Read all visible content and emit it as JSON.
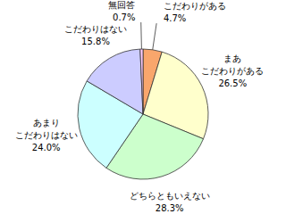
{
  "chart_data": {
    "type": "pie",
    "categories": [
      "こだわりがある",
      "まあ\nこだわりがある",
      "どちらともいえない",
      "あまり\nこだわりはない",
      "こだわりはない",
      "無回答"
    ],
    "values": [
      4.7,
      26.5,
      28.3,
      24.0,
      15.8,
      0.7
    ],
    "value_labels": [
      "4.7%",
      "26.5%",
      "28.3%",
      "24.0%",
      "15.8%",
      "0.7%"
    ],
    "colors": [
      "#f9a66c",
      "#ffffcc",
      "#ccffcc",
      "#ccffff",
      "#ccccff",
      "#ffccff"
    ],
    "data_labels": true
  }
}
